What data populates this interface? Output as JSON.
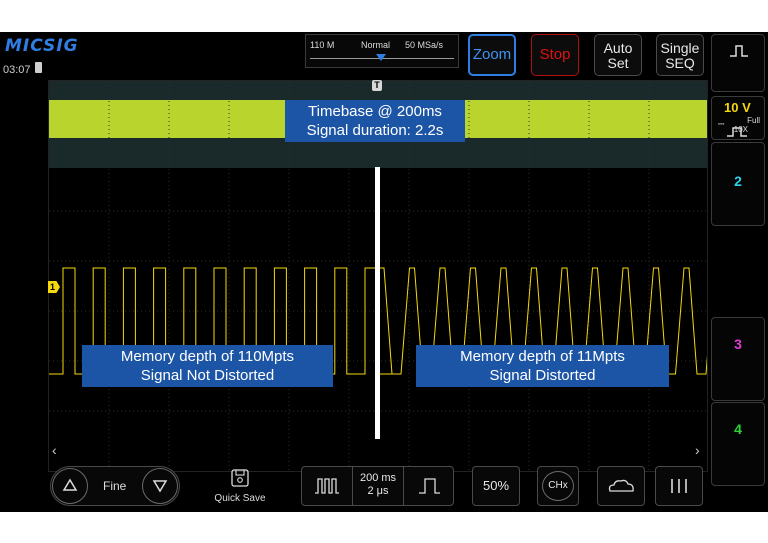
{
  "topbar": {
    "brand": "MICSIG",
    "clock": "03:07",
    "acquisition": {
      "memory": "110 M",
      "mode": "Normal",
      "sample_rate": "50 MSa/s"
    },
    "buttons": {
      "zoom": "Zoom",
      "stop": "Stop",
      "auto_set": [
        "Auto",
        "Set"
      ],
      "single_seq": [
        "Single",
        "SEQ"
      ]
    }
  },
  "channels": {
    "ch1": {
      "scale": "10 V",
      "bandwidth": "Full",
      "probe": "10X",
      "coupling": "DC",
      "marker": "1"
    },
    "ch2": "2",
    "ch3": "3",
    "ch4": "4"
  },
  "overlays": {
    "timebase": [
      "Timebase @ 200ms",
      "Signal duration: 2.2s"
    ],
    "left": [
      "Memory depth of 110Mpts",
      "Signal Not Distorted"
    ],
    "right": [
      "Memory depth of 11Mpts",
      "Signal Distorted"
    ],
    "trigger_marker": "T"
  },
  "bottombar": {
    "fine": "Fine",
    "quick_save": "Quick Save",
    "timebase": [
      "200 ms",
      "2 μs"
    ],
    "fifty": "50%",
    "chx": "CHx"
  },
  "colors": {
    "ch1": "#f5d90c",
    "ch2": "#2fd2e8",
    "ch3": "#e23bd8",
    "ch4": "#28d43a",
    "accent": "#2f7fe3",
    "stop": "#e01010"
  }
}
